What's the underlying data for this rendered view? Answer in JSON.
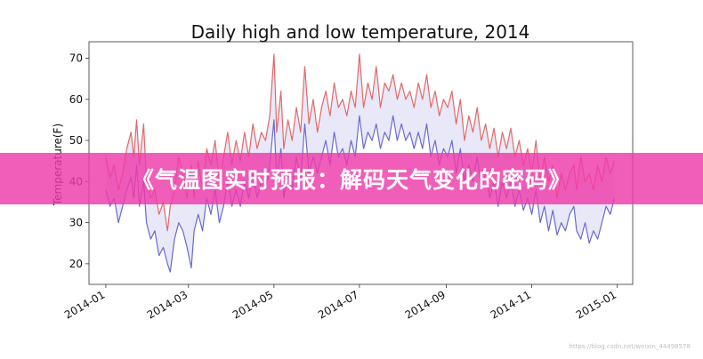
{
  "banner": {
    "text": "《气温图实时预报：解码天气变化的密码》"
  },
  "watermark": {
    "text": "https://blog.csdn.net/weixin_44498578"
  },
  "chart_data": {
    "type": "line",
    "title": "Daily high and low temperature, 2014",
    "xlabel": "",
    "ylabel": "Temperature(F)",
    "xlim": [
      "2013-12-20",
      "2015-01-12"
    ],
    "ylim": [
      15,
      74
    ],
    "x_ticks": [
      "2014-01",
      "2014-03",
      "2014-05",
      "2014-07",
      "2014-09",
      "2014-11",
      "2015-01"
    ],
    "y_ticks": [
      20,
      30,
      40,
      50,
      60,
      70
    ],
    "fill_between": {
      "color": "#d8d8f4",
      "alpha": 0.6
    },
    "grid": false,
    "series": [
      {
        "color": "#e06a6a",
        "points": [
          [
            "2014-01-01",
            46
          ],
          [
            "2014-01-04",
            41
          ],
          [
            "2014-01-07",
            44
          ],
          [
            "2014-01-10",
            38
          ],
          [
            "2014-01-13",
            42
          ],
          [
            "2014-01-16",
            48
          ],
          [
            "2014-01-19",
            52
          ],
          [
            "2014-01-21",
            46
          ],
          [
            "2014-01-23",
            55
          ],
          [
            "2014-01-25",
            44
          ],
          [
            "2014-01-28",
            54
          ],
          [
            "2014-01-30",
            40
          ],
          [
            "2014-02-02",
            36
          ],
          [
            "2014-02-05",
            38
          ],
          [
            "2014-02-08",
            32
          ],
          [
            "2014-02-11",
            35
          ],
          [
            "2014-02-14",
            28
          ],
          [
            "2014-02-16",
            34
          ],
          [
            "2014-02-19",
            38
          ],
          [
            "2014-02-22",
            46
          ],
          [
            "2014-02-25",
            42
          ],
          [
            "2014-02-28",
            36
          ],
          [
            "2014-03-03",
            44
          ],
          [
            "2014-03-05",
            36
          ],
          [
            "2014-03-08",
            45
          ],
          [
            "2014-03-11",
            38
          ],
          [
            "2014-03-14",
            48
          ],
          [
            "2014-03-17",
            44
          ],
          [
            "2014-03-20",
            50
          ],
          [
            "2014-03-23",
            40
          ],
          [
            "2014-03-26",
            46
          ],
          [
            "2014-03-29",
            52
          ],
          [
            "2014-04-01",
            44
          ],
          [
            "2014-04-04",
            50
          ],
          [
            "2014-04-07",
            45
          ],
          [
            "2014-04-10",
            52
          ],
          [
            "2014-04-13",
            46
          ],
          [
            "2014-04-16",
            54
          ],
          [
            "2014-04-19",
            48
          ],
          [
            "2014-04-22",
            52
          ],
          [
            "2014-04-25",
            50
          ],
          [
            "2014-04-28",
            56
          ],
          [
            "2014-05-01",
            71
          ],
          [
            "2014-05-03",
            52
          ],
          [
            "2014-05-06",
            62
          ],
          [
            "2014-05-08",
            48
          ],
          [
            "2014-05-11",
            55
          ],
          [
            "2014-05-14",
            50
          ],
          [
            "2014-05-17",
            58
          ],
          [
            "2014-05-20",
            52
          ],
          [
            "2014-05-23",
            68
          ],
          [
            "2014-05-26",
            54
          ],
          [
            "2014-05-29",
            60
          ],
          [
            "2014-06-01",
            52
          ],
          [
            "2014-06-04",
            58
          ],
          [
            "2014-06-07",
            62
          ],
          [
            "2014-06-10",
            56
          ],
          [
            "2014-06-13",
            64
          ],
          [
            "2014-06-16",
            58
          ],
          [
            "2014-06-19",
            60
          ],
          [
            "2014-06-22",
            56
          ],
          [
            "2014-06-25",
            62
          ],
          [
            "2014-06-28",
            58
          ],
          [
            "2014-07-01",
            71
          ],
          [
            "2014-07-04",
            58
          ],
          [
            "2014-07-07",
            64
          ],
          [
            "2014-07-10",
            60
          ],
          [
            "2014-07-13",
            68
          ],
          [
            "2014-07-16",
            58
          ],
          [
            "2014-07-19",
            64
          ],
          [
            "2014-07-22",
            62
          ],
          [
            "2014-07-25",
            66
          ],
          [
            "2014-07-28",
            60
          ],
          [
            "2014-07-31",
            64
          ],
          [
            "2014-08-03",
            60
          ],
          [
            "2014-08-06",
            62
          ],
          [
            "2014-08-09",
            58
          ],
          [
            "2014-08-12",
            64
          ],
          [
            "2014-08-15",
            60
          ],
          [
            "2014-08-18",
            66
          ],
          [
            "2014-08-21",
            58
          ],
          [
            "2014-08-24",
            62
          ],
          [
            "2014-08-27",
            56
          ],
          [
            "2014-08-30",
            60
          ],
          [
            "2014-09-02",
            58
          ],
          [
            "2014-09-05",
            62
          ],
          [
            "2014-09-08",
            54
          ],
          [
            "2014-09-11",
            60
          ],
          [
            "2014-09-14",
            50
          ],
          [
            "2014-09-17",
            56
          ],
          [
            "2014-09-20",
            52
          ],
          [
            "2014-09-23",
            58
          ],
          [
            "2014-09-26",
            50
          ],
          [
            "2014-09-29",
            54
          ],
          [
            "2014-10-02",
            48
          ],
          [
            "2014-10-05",
            53
          ],
          [
            "2014-10-08",
            46
          ],
          [
            "2014-10-11",
            52
          ],
          [
            "2014-10-14",
            48
          ],
          [
            "2014-10-17",
            53
          ],
          [
            "2014-10-20",
            46
          ],
          [
            "2014-10-23",
            50
          ],
          [
            "2014-10-26",
            44
          ],
          [
            "2014-10-29",
            48
          ],
          [
            "2014-11-01",
            42
          ],
          [
            "2014-11-04",
            50
          ],
          [
            "2014-11-07",
            40
          ],
          [
            "2014-11-10",
            46
          ],
          [
            "2014-11-13",
            40
          ],
          [
            "2014-11-16",
            44
          ],
          [
            "2014-11-19",
            36
          ],
          [
            "2014-11-22",
            42
          ],
          [
            "2014-11-25",
            38
          ],
          [
            "2014-11-28",
            42
          ],
          [
            "2014-12-01",
            44
          ],
          [
            "2014-12-03",
            38
          ],
          [
            "2014-12-06",
            46
          ],
          [
            "2014-12-09",
            40
          ],
          [
            "2014-12-12",
            42
          ],
          [
            "2014-12-15",
            38
          ],
          [
            "2014-12-18",
            44
          ],
          [
            "2014-12-21",
            40
          ],
          [
            "2014-12-24",
            46
          ],
          [
            "2014-12-27",
            42
          ],
          [
            "2014-12-30",
            45
          ]
        ]
      },
      {
        "color": "#6a6ad0",
        "points": [
          [
            "2014-01-01",
            38
          ],
          [
            "2014-01-04",
            34
          ],
          [
            "2014-01-07",
            36
          ],
          [
            "2014-01-10",
            30
          ],
          [
            "2014-01-13",
            34
          ],
          [
            "2014-01-16",
            38
          ],
          [
            "2014-01-19",
            41
          ],
          [
            "2014-01-21",
            36
          ],
          [
            "2014-01-23",
            44
          ],
          [
            "2014-01-25",
            34
          ],
          [
            "2014-01-28",
            40
          ],
          [
            "2014-01-30",
            30
          ],
          [
            "2014-02-02",
            26
          ],
          [
            "2014-02-05",
            28
          ],
          [
            "2014-02-08",
            22
          ],
          [
            "2014-02-11",
            24
          ],
          [
            "2014-02-14",
            20
          ],
          [
            "2014-02-16",
            18
          ],
          [
            "2014-02-19",
            26
          ],
          [
            "2014-02-22",
            30
          ],
          [
            "2014-02-25",
            28
          ],
          [
            "2014-02-28",
            24
          ],
          [
            "2014-03-03",
            19
          ],
          [
            "2014-03-05",
            28
          ],
          [
            "2014-03-08",
            32
          ],
          [
            "2014-03-11",
            28
          ],
          [
            "2014-03-14",
            36
          ],
          [
            "2014-03-17",
            32
          ],
          [
            "2014-03-20",
            38
          ],
          [
            "2014-03-23",
            30
          ],
          [
            "2014-03-26",
            34
          ],
          [
            "2014-03-29",
            40
          ],
          [
            "2014-04-01",
            34
          ],
          [
            "2014-04-04",
            38
          ],
          [
            "2014-04-07",
            34
          ],
          [
            "2014-04-10",
            40
          ],
          [
            "2014-04-13",
            36
          ],
          [
            "2014-04-16",
            42
          ],
          [
            "2014-04-19",
            36
          ],
          [
            "2014-04-22",
            40
          ],
          [
            "2014-04-25",
            38
          ],
          [
            "2014-04-28",
            44
          ],
          [
            "2014-05-01",
            55
          ],
          [
            "2014-05-03",
            40
          ],
          [
            "2014-05-06",
            48
          ],
          [
            "2014-05-08",
            36
          ],
          [
            "2014-05-11",
            42
          ],
          [
            "2014-05-14",
            38
          ],
          [
            "2014-05-17",
            46
          ],
          [
            "2014-05-20",
            40
          ],
          [
            "2014-05-23",
            54
          ],
          [
            "2014-05-26",
            42
          ],
          [
            "2014-05-29",
            46
          ],
          [
            "2014-06-01",
            42
          ],
          [
            "2014-06-04",
            46
          ],
          [
            "2014-06-07",
            50
          ],
          [
            "2014-06-10",
            44
          ],
          [
            "2014-06-13",
            52
          ],
          [
            "2014-06-16",
            46
          ],
          [
            "2014-06-19",
            48
          ],
          [
            "2014-06-22",
            44
          ],
          [
            "2014-06-25",
            50
          ],
          [
            "2014-06-28",
            46
          ],
          [
            "2014-07-01",
            56
          ],
          [
            "2014-07-04",
            48
          ],
          [
            "2014-07-07",
            52
          ],
          [
            "2014-07-10",
            50
          ],
          [
            "2014-07-13",
            54
          ],
          [
            "2014-07-16",
            48
          ],
          [
            "2014-07-19",
            52
          ],
          [
            "2014-07-22",
            50
          ],
          [
            "2014-07-25",
            56
          ],
          [
            "2014-07-28",
            50
          ],
          [
            "2014-07-31",
            54
          ],
          [
            "2014-08-03",
            50
          ],
          [
            "2014-08-06",
            52
          ],
          [
            "2014-08-09",
            48
          ],
          [
            "2014-08-12",
            52
          ],
          [
            "2014-08-15",
            48
          ],
          [
            "2014-08-18",
            54
          ],
          [
            "2014-08-21",
            46
          ],
          [
            "2014-08-24",
            50
          ],
          [
            "2014-08-27",
            44
          ],
          [
            "2014-08-30",
            48
          ],
          [
            "2014-09-02",
            46
          ],
          [
            "2014-09-05",
            50
          ],
          [
            "2014-09-08",
            42
          ],
          [
            "2014-09-11",
            48
          ],
          [
            "2014-09-14",
            40
          ],
          [
            "2014-09-17",
            44
          ],
          [
            "2014-09-20",
            40
          ],
          [
            "2014-09-23",
            46
          ],
          [
            "2014-09-26",
            38
          ],
          [
            "2014-09-29",
            42
          ],
          [
            "2014-10-02",
            36
          ],
          [
            "2014-10-05",
            40
          ],
          [
            "2014-10-08",
            34
          ],
          [
            "2014-10-11",
            40
          ],
          [
            "2014-10-14",
            36
          ],
          [
            "2014-10-17",
            40
          ],
          [
            "2014-10-20",
            34
          ],
          [
            "2014-10-23",
            38
          ],
          [
            "2014-10-26",
            33
          ],
          [
            "2014-10-29",
            36
          ],
          [
            "2014-11-01",
            32
          ],
          [
            "2014-11-04",
            38
          ],
          [
            "2014-11-07",
            30
          ],
          [
            "2014-11-10",
            34
          ],
          [
            "2014-11-13",
            28
          ],
          [
            "2014-11-16",
            33
          ],
          [
            "2014-11-19",
            27
          ],
          [
            "2014-11-22",
            30
          ],
          [
            "2014-11-25",
            28
          ],
          [
            "2014-11-28",
            32
          ],
          [
            "2014-12-01",
            34
          ],
          [
            "2014-12-03",
            28
          ],
          [
            "2014-12-06",
            26
          ],
          [
            "2014-12-09",
            30
          ],
          [
            "2014-12-12",
            25
          ],
          [
            "2014-12-15",
            28
          ],
          [
            "2014-12-18",
            26
          ],
          [
            "2014-12-21",
            30
          ],
          [
            "2014-12-24",
            34
          ],
          [
            "2014-12-27",
            32
          ],
          [
            "2014-12-30",
            36
          ]
        ]
      }
    ]
  }
}
